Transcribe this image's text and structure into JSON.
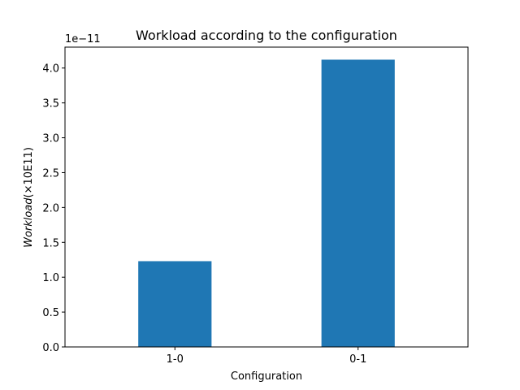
{
  "chart_data": {
    "type": "bar",
    "title": "Workload according to the configuration",
    "xlabel": "Configuration",
    "ylabel_italic": "Workload",
    "ylabel_suffix": "(×10E11)",
    "offset_text": "1e−11",
    "categories": [
      "1-0",
      "0-1"
    ],
    "values": [
      1.23e-11,
      4.12e-11
    ],
    "ylim": [
      0,
      4.3e-11
    ],
    "yticks": [
      0,
      5e-12,
      1e-11,
      1.5e-11,
      2e-11,
      2.5e-11,
      3e-11,
      3.5e-11,
      4e-11
    ],
    "ytick_labels": [
      "0.0",
      "0.5",
      "1.0",
      "1.5",
      "2.0",
      "2.5",
      "3.0",
      "3.5",
      "4.0"
    ],
    "bar_color": "#1f77b4",
    "grid": false,
    "legend": "none"
  }
}
